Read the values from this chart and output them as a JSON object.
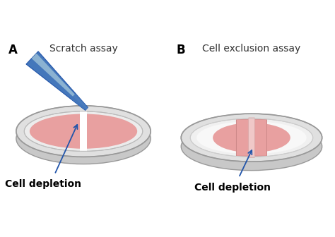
{
  "title_a": "Scratch assay",
  "title_b": "Cell exclusion assay",
  "label_a": "A",
  "label_b": "B",
  "cell_depletion": "Cell depletion",
  "bg_color": "#ffffff",
  "dish_wall_color": "#c8c8c8",
  "dish_rim_top_color": "#e0e0e0",
  "dish_floor_color": "#ececec",
  "dish_inner_floor_color": "#f5f5f5",
  "cell_color": "#e8a0a0",
  "scratch_color": "#f8f0f0",
  "pipette_dark_color": "#4477bb",
  "pipette_mid_color": "#6699cc",
  "pipette_light_color": "#aaccdd",
  "arrow_color": "#2255aa",
  "insert_gap_color": "#f0c8c8",
  "title_fontsize": 10,
  "label_fontsize": 12,
  "annot_fontsize": 10
}
